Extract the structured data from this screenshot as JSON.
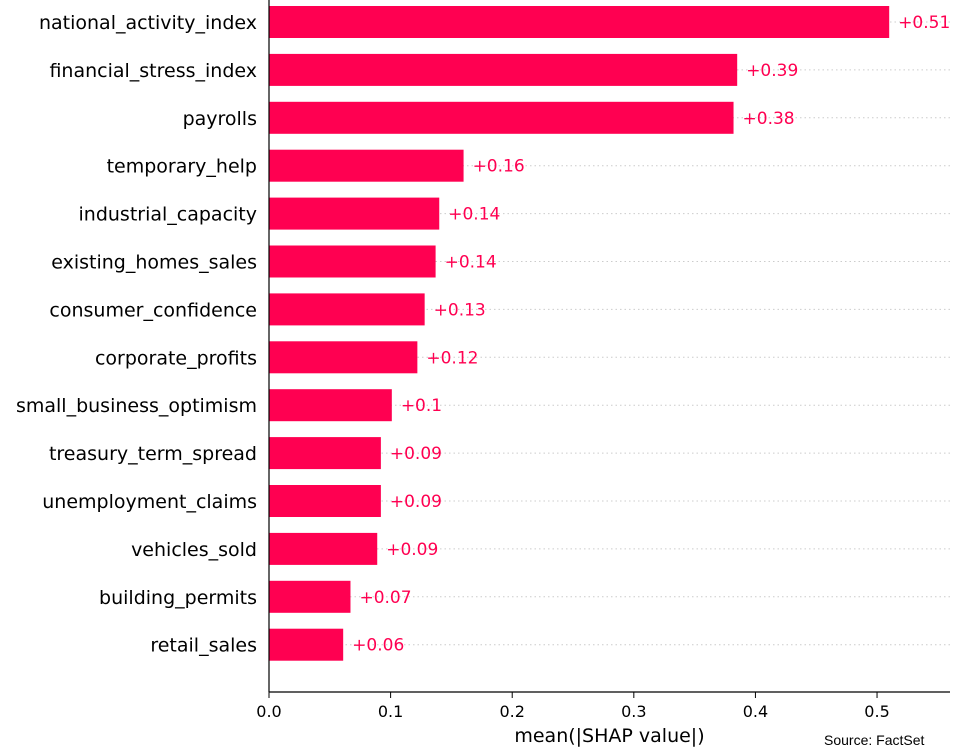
{
  "chart_data": {
    "type": "bar",
    "orientation": "horizontal",
    "categories": [
      "national_activity_index",
      "financial_stress_index",
      "payrolls",
      "temporary_help",
      "industrial_capacity",
      "existing_homes_sales",
      "consumer_confidence",
      "corporate_profits",
      "small_business_optimism",
      "treasury_term_spread",
      "unemployment_claims",
      "vehicles_sold",
      "building_permits",
      "retail_sales"
    ],
    "values": [
      0.51,
      0.385,
      0.382,
      0.16,
      0.14,
      0.137,
      0.128,
      0.122,
      0.101,
      0.092,
      0.092,
      0.089,
      0.067,
      0.061
    ],
    "value_labels": [
      "+0.51",
      "+0.39",
      "+0.38",
      "+0.16",
      "+0.14",
      "+0.14",
      "+0.13",
      "+0.12",
      "+0.1",
      "+0.09",
      "+0.09",
      "+0.09",
      "+0.07",
      "+0.06"
    ],
    "title": "",
    "xlabel": "mean(|SHAP value|)",
    "ylabel": "",
    "xlim": [
      0,
      0.56
    ],
    "xticks": [
      0.0,
      0.1,
      0.2,
      0.3,
      0.4,
      0.5
    ],
    "xtick_labels": [
      "0.0",
      "0.1",
      "0.2",
      "0.3",
      "0.4",
      "0.5"
    ],
    "grid": "horizontal dotted lines per category",
    "bar_color": "#ff0051",
    "label_color": "#ff0051",
    "grid_color": "#cccccc"
  },
  "source": "Source: FactSet"
}
